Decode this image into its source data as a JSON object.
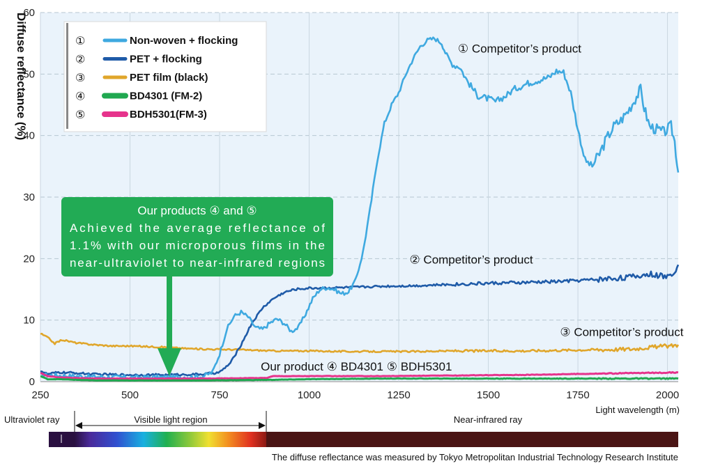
{
  "chart_data": {
    "type": "line",
    "ylabel": "Diffuse reflectance (%)",
    "xlabel": "Light wavelength (m)",
    "xlim": [
      250,
      2030
    ],
    "ylim": [
      0,
      60
    ],
    "x_ticks": [
      250,
      500,
      750,
      1000,
      1250,
      1500,
      1750,
      2000
    ],
    "y_ticks": [
      0,
      10,
      20,
      30,
      40,
      50,
      60
    ],
    "grid": "horizontal dashed",
    "legend_position": "top-left",
    "series": [
      {
        "marker": "①",
        "name": "Non-woven + flocking",
        "color": "#3fa9e0",
        "noise": 0.7,
        "points": [
          [
            250,
            1.1
          ],
          [
            300,
            1.0
          ],
          [
            400,
            0.8
          ],
          [
            500,
            0.7
          ],
          [
            600,
            0.7
          ],
          [
            700,
            0.8
          ],
          [
            730,
            1.5
          ],
          [
            750,
            4.5
          ],
          [
            770,
            8.5
          ],
          [
            790,
            10.6
          ],
          [
            810,
            11.3
          ],
          [
            830,
            10.5
          ],
          [
            850,
            8.8
          ],
          [
            870,
            8.5
          ],
          [
            890,
            9.5
          ],
          [
            910,
            10.2
          ],
          [
            930,
            9.5
          ],
          [
            950,
            8.2
          ],
          [
            970,
            8.8
          ],
          [
            990,
            11.0
          ],
          [
            1010,
            13.5
          ],
          [
            1030,
            15.0
          ],
          [
            1050,
            15.3
          ],
          [
            1070,
            15.0
          ],
          [
            1090,
            14.3
          ],
          [
            1110,
            14.6
          ],
          [
            1130,
            16.5
          ],
          [
            1150,
            21.0
          ],
          [
            1170,
            28.0
          ],
          [
            1190,
            36.0
          ],
          [
            1210,
            42.0
          ],
          [
            1230,
            45.0
          ],
          [
            1250,
            47.0
          ],
          [
            1270,
            50.0
          ],
          [
            1290,
            52.5
          ],
          [
            1310,
            54.5
          ],
          [
            1330,
            55.5
          ],
          [
            1350,
            55.8
          ],
          [
            1370,
            55.0
          ],
          [
            1380,
            53.5
          ],
          [
            1400,
            51.5
          ],
          [
            1420,
            51.2
          ],
          [
            1440,
            49.0
          ],
          [
            1470,
            46.5
          ],
          [
            1500,
            46.0
          ],
          [
            1520,
            45.5
          ],
          [
            1550,
            46.5
          ],
          [
            1570,
            47.5
          ],
          [
            1590,
            48.0
          ],
          [
            1610,
            48.5
          ],
          [
            1640,
            49.0
          ],
          [
            1670,
            49.5
          ],
          [
            1690,
            50.5
          ],
          [
            1710,
            50.3
          ],
          [
            1730,
            47.0
          ],
          [
            1750,
            41.0
          ],
          [
            1770,
            36.0
          ],
          [
            1790,
            35.0
          ],
          [
            1810,
            37.0
          ],
          [
            1830,
            39.5
          ],
          [
            1850,
            41.5
          ],
          [
            1870,
            42.5
          ],
          [
            1890,
            44.0
          ],
          [
            1910,
            46.0
          ],
          [
            1925,
            47.5
          ],
          [
            1935,
            44.5
          ],
          [
            1950,
            41.5
          ],
          [
            1970,
            41.0
          ],
          [
            1990,
            40.5
          ],
          [
            2010,
            41.5
          ],
          [
            2020,
            39.0
          ],
          [
            2030,
            34.0
          ]
        ]
      },
      {
        "marker": "②",
        "name": "PET + flocking",
        "color": "#1f5ba8",
        "noise": 0.35,
        "points": [
          [
            250,
            1.8
          ],
          [
            270,
            1.2
          ],
          [
            300,
            1.5
          ],
          [
            350,
            1.4
          ],
          [
            400,
            1.2
          ],
          [
            500,
            1.1
          ],
          [
            600,
            1.1
          ],
          [
            700,
            1.2
          ],
          [
            750,
            1.5
          ],
          [
            780,
            3.0
          ],
          [
            810,
            6.0
          ],
          [
            840,
            9.5
          ],
          [
            870,
            12.0
          ],
          [
            900,
            13.5
          ],
          [
            930,
            14.5
          ],
          [
            960,
            15.0
          ],
          [
            1000,
            15.2
          ],
          [
            1100,
            15.3
          ],
          [
            1200,
            15.5
          ],
          [
            1300,
            15.6
          ],
          [
            1400,
            15.8
          ],
          [
            1500,
            16.0
          ],
          [
            1600,
            16.1
          ],
          [
            1700,
            16.3
          ],
          [
            1800,
            16.6
          ],
          [
            1850,
            16.8
          ],
          [
            1900,
            17.0
          ],
          [
            1950,
            17.5
          ],
          [
            2000,
            17.0
          ],
          [
            2020,
            18.0
          ],
          [
            2030,
            19.0
          ]
        ]
      },
      {
        "marker": "③",
        "name": "PET film (black)",
        "color": "#e0a62b",
        "noise": 0.25,
        "points": [
          [
            250,
            7.8
          ],
          [
            270,
            7.2
          ],
          [
            290,
            6.2
          ],
          [
            310,
            6.8
          ],
          [
            350,
            6.3
          ],
          [
            400,
            6.0
          ],
          [
            450,
            5.8
          ],
          [
            500,
            5.8
          ],
          [
            550,
            5.7
          ],
          [
            600,
            5.6
          ],
          [
            650,
            5.4
          ],
          [
            700,
            5.3
          ],
          [
            800,
            5.2
          ],
          [
            900,
            5.0
          ],
          [
            1000,
            5.0
          ],
          [
            1100,
            4.9
          ],
          [
            1200,
            4.9
          ],
          [
            1300,
            4.9
          ],
          [
            1400,
            5.0
          ],
          [
            1500,
            5.0
          ],
          [
            1600,
            5.0
          ],
          [
            1700,
            5.1
          ],
          [
            1800,
            5.2
          ],
          [
            1900,
            5.3
          ],
          [
            1950,
            5.6
          ],
          [
            2000,
            5.8
          ],
          [
            2030,
            6.0
          ]
        ]
      },
      {
        "marker": "④",
        "name": "BD4301 (FM-2)",
        "color": "#20a850",
        "noise": 0.06,
        "points": [
          [
            250,
            0.9
          ],
          [
            270,
            0.4
          ],
          [
            300,
            0.4
          ],
          [
            400,
            0.2
          ],
          [
            500,
            0.2
          ],
          [
            700,
            0.2
          ],
          [
            900,
            0.3
          ],
          [
            1000,
            0.4
          ],
          [
            1200,
            0.5
          ],
          [
            1400,
            0.5
          ],
          [
            1600,
            0.5
          ],
          [
            1800,
            0.5
          ],
          [
            2030,
            0.5
          ]
        ]
      },
      {
        "marker": "⑤",
        "name": "BDH5301(FM-3)",
        "color": "#e6338c",
        "noise": 0.06,
        "points": [
          [
            250,
            1.4
          ],
          [
            270,
            0.9
          ],
          [
            300,
            0.7
          ],
          [
            400,
            0.5
          ],
          [
            500,
            0.5
          ],
          [
            700,
            0.5
          ],
          [
            880,
            0.6
          ],
          [
            900,
            0.9
          ],
          [
            1000,
            0.9
          ],
          [
            1200,
            0.9
          ],
          [
            1400,
            1.0
          ],
          [
            1600,
            1.1
          ],
          [
            1800,
            1.3
          ],
          [
            2030,
            1.5
          ]
        ]
      }
    ],
    "annotations": [
      {
        "text": "① Competitor’s product",
        "x": 1415,
        "y": 53.5
      },
      {
        "text": "② Competitor’s product",
        "x": 1280,
        "y": 19.2
      },
      {
        "text": "③ Competitor’s product",
        "x": 1700,
        "y": 7.4
      },
      {
        "text": "Our product ④ BD4301 ⑤ BDH5301",
        "x": 865,
        "y": 1.8
      }
    ],
    "callout": {
      "lines": [
        "Our products ④ and ⑤",
        "Achieved the average reflectance of",
        "1.1% with our microporous films in the",
        "near-ultraviolet to near-infrared regions"
      ],
      "color": "#22ab55"
    },
    "spectrum_band": {
      "ultraviolet_label": "Ultraviolet ray",
      "visible_label": "Visible light region",
      "near_infrared_label": "Near-infrared ray"
    },
    "footnote": "The diffuse reflectance was measured by Tokyo Metropolitan Industrial Technology Research Institute"
  }
}
